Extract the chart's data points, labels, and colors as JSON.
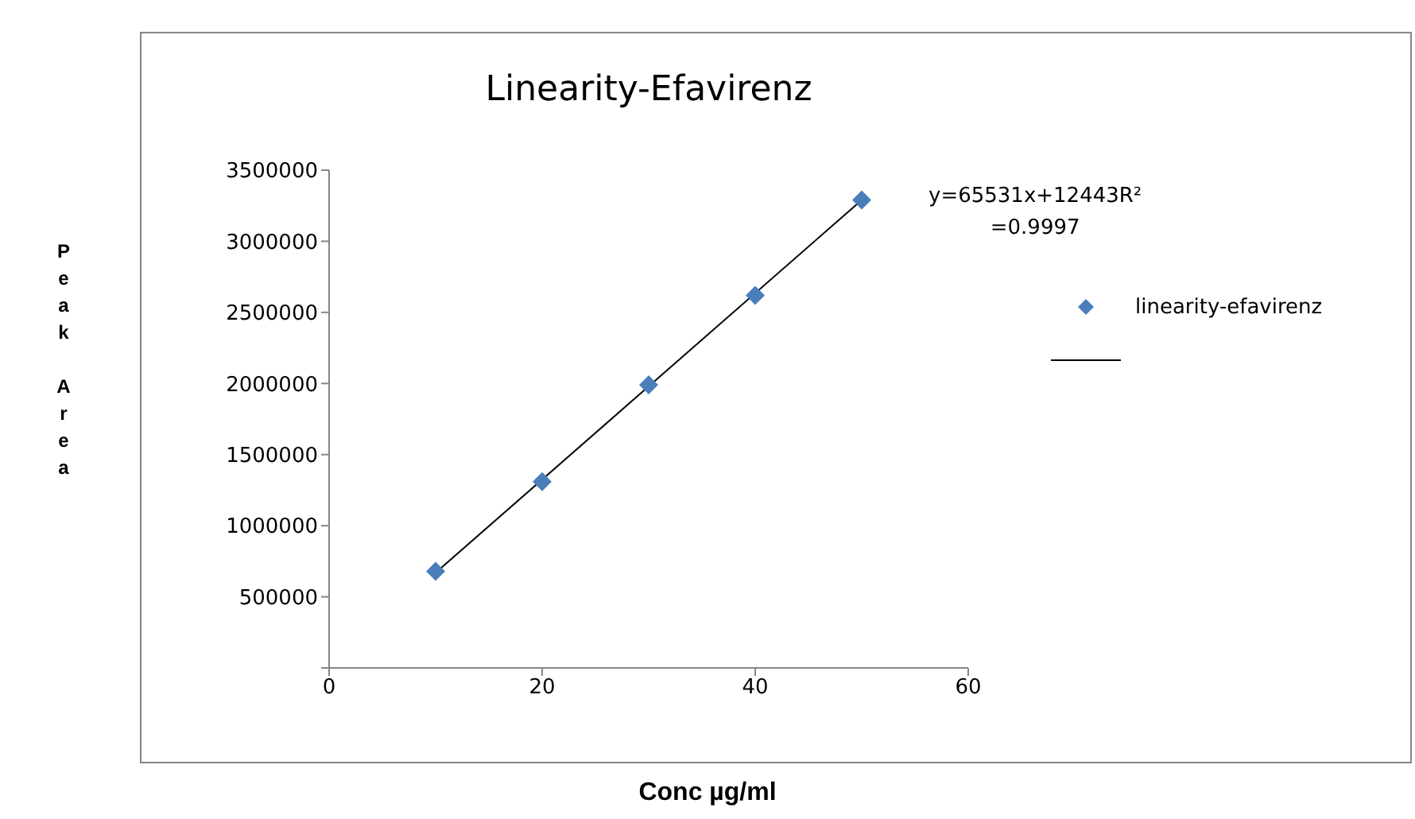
{
  "chart_data": {
    "type": "scatter",
    "title": "Linearity-Efavirenz",
    "xlabel": "Conc µg/ml",
    "ylabel": "Peak Area",
    "x": [
      10,
      20,
      30,
      40,
      50
    ],
    "series": [
      {
        "name": "linearity-efavirenz",
        "color": "#4a7ebb",
        "marker": "diamond",
        "values": [
          680000,
          1310000,
          1990000,
          2620000,
          3290000
        ]
      },
      {
        "type": "line",
        "color": "#000000",
        "marker": "none",
        "line_style": "solid",
        "x": [
          10,
          50
        ],
        "values": [
          670000,
          3290000
        ]
      }
    ],
    "xlim": [
      0,
      60
    ],
    "xticks": [
      0,
      20,
      40,
      60
    ],
    "ylim": [
      0,
      3500000
    ],
    "yticks": [
      {
        "value": 0,
        "label": null
      },
      500000,
      1000000,
      1500000,
      2000000,
      2500000,
      3000000,
      3500000
    ],
    "annotations": [
      "y=65531x+12443R²\n=0.9997"
    ],
    "legend": "right"
  }
}
